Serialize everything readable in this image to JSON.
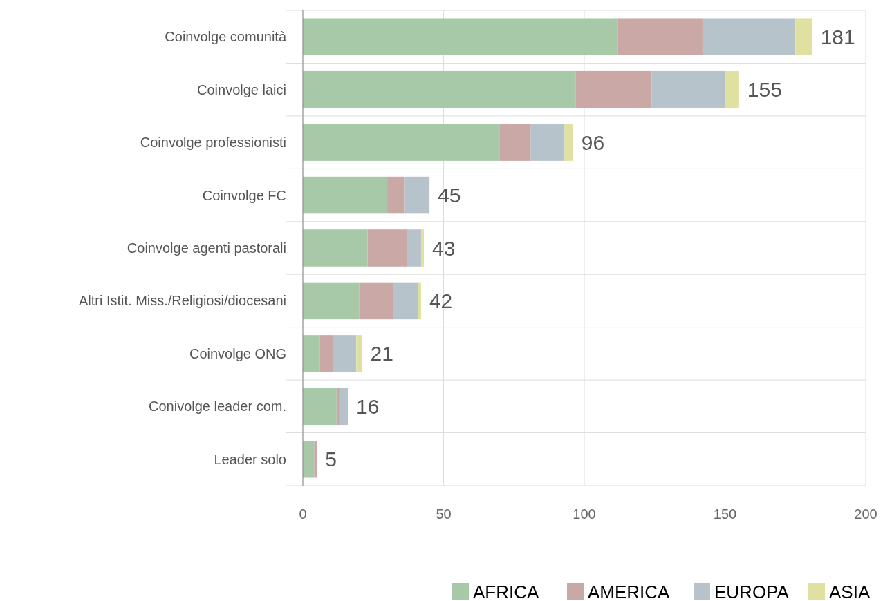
{
  "chart_data": {
    "type": "bar",
    "orientation": "horizontal",
    "stacked": true,
    "categories": [
      "Coinvolge comunità",
      "Coinvolge laici",
      "Coinvolge professionisti",
      "Coinvolge FC",
      "Coinvolge agenti pastorali",
      "Altri Istit. Miss./Religiosi/diocesani",
      "Coinvolge ONG",
      "Conivolge leader com.",
      "Leader solo"
    ],
    "series": [
      {
        "name": "AFRICA",
        "color": "#a8c9a8",
        "values": [
          112,
          97,
          70,
          30,
          23,
          20,
          6,
          12,
          4
        ]
      },
      {
        "name": "AMERICA",
        "color": "#c9a8a6",
        "values": [
          30,
          27,
          11,
          6,
          14,
          12,
          5,
          1,
          1
        ]
      },
      {
        "name": "EUROPA",
        "color": "#b7c3cb",
        "values": [
          33,
          26,
          12,
          9,
          5,
          9,
          8,
          3,
          0
        ]
      },
      {
        "name": "ASIA",
        "color": "#e0e0a0",
        "values": [
          6,
          5,
          3,
          0,
          1,
          1,
          2,
          0,
          0
        ]
      }
    ],
    "totals": [
      "181",
      "155",
      "96",
      "45",
      "43",
      "42",
      "21",
      "16",
      "5"
    ],
    "xlim": [
      0,
      200
    ],
    "xticks": [
      0,
      50,
      100,
      150,
      200
    ],
    "grid": true,
    "legend": "bottom right"
  }
}
